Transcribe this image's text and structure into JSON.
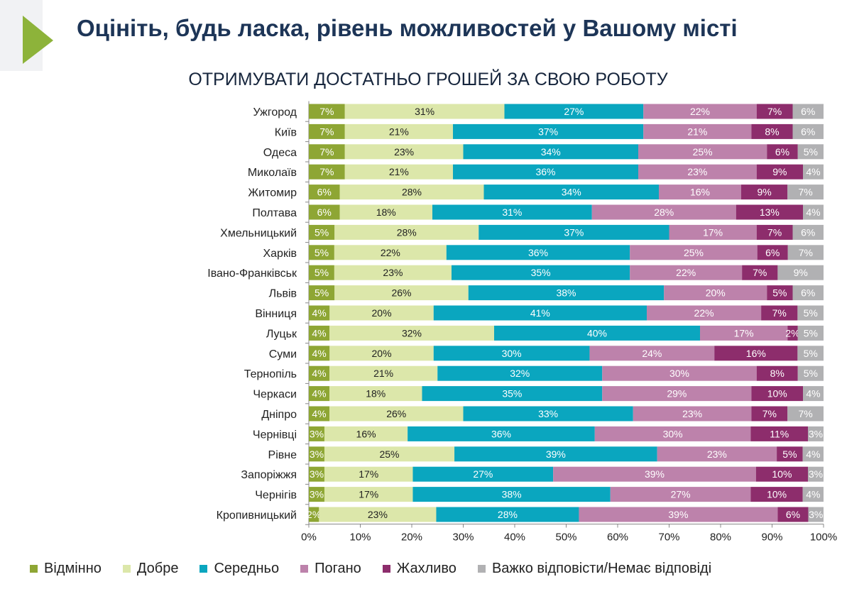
{
  "title": "Оцініть, будь ласка, рівень можливостей у Вашому місті",
  "colors": [
    "#8ea634",
    "#dce7aa",
    "#0aa6bf",
    "#bd82ab",
    "#8d2d6c",
    "#b1b1b3"
  ],
  "chart_data": {
    "type": "bar",
    "orientation": "horizontal-stacked-100",
    "title": "ОТРИМУВАТИ ДОСТАТНЬО ГРОШЕЙ ЗА СВОЮ РОБОТУ",
    "xlim": [
      0,
      100
    ],
    "xticks": [
      "0%",
      "10%",
      "20%",
      "30%",
      "40%",
      "50%",
      "60%",
      "70%",
      "80%",
      "90%",
      "100%"
    ],
    "legend_position": "bottom",
    "categories": [
      "Ужгород",
      "Київ",
      "Одеса",
      "Миколаїв",
      "Житомир",
      "Полтава",
      "Хмельницький",
      "Харків",
      "Івано-Франківськ",
      "Львів",
      "Вінниця",
      "Луцьк",
      "Суми",
      "Тернопіль",
      "Черкаси",
      "Дніпро",
      "Чернівці",
      "Рівне",
      "Запоріжжя",
      "Чернігів",
      "Кропивницький"
    ],
    "series": [
      {
        "name": "Відмінно",
        "values": [
          7,
          7,
          7,
          7,
          6,
          6,
          5,
          5,
          5,
          5,
          4,
          4,
          4,
          4,
          4,
          4,
          3,
          3,
          3,
          3,
          2
        ]
      },
      {
        "name": "Добре",
        "values": [
          31,
          21,
          23,
          21,
          28,
          18,
          28,
          22,
          23,
          26,
          20,
          32,
          20,
          21,
          18,
          26,
          16,
          25,
          17,
          17,
          23
        ]
      },
      {
        "name": "Середньо",
        "values": [
          27,
          37,
          34,
          36,
          34,
          31,
          37,
          36,
          35,
          38,
          41,
          40,
          30,
          32,
          35,
          33,
          36,
          39,
          27,
          38,
          28
        ]
      },
      {
        "name": "Погано",
        "values": [
          22,
          21,
          25,
          23,
          16,
          28,
          17,
          25,
          22,
          20,
          22,
          17,
          24,
          30,
          29,
          23,
          30,
          23,
          39,
          27,
          39
        ]
      },
      {
        "name": "Жахливо",
        "values": [
          7,
          8,
          6,
          9,
          9,
          13,
          7,
          6,
          7,
          5,
          7,
          2,
          16,
          8,
          10,
          7,
          11,
          5,
          10,
          10,
          6
        ]
      },
      {
        "name": "Важко відповісти/Немає відповіді",
        "values": [
          6,
          6,
          5,
          4,
          7,
          4,
          6,
          7,
          9,
          6,
          5,
          5,
          5,
          5,
          4,
          7,
          3,
          4,
          3,
          4,
          3
        ]
      }
    ]
  }
}
